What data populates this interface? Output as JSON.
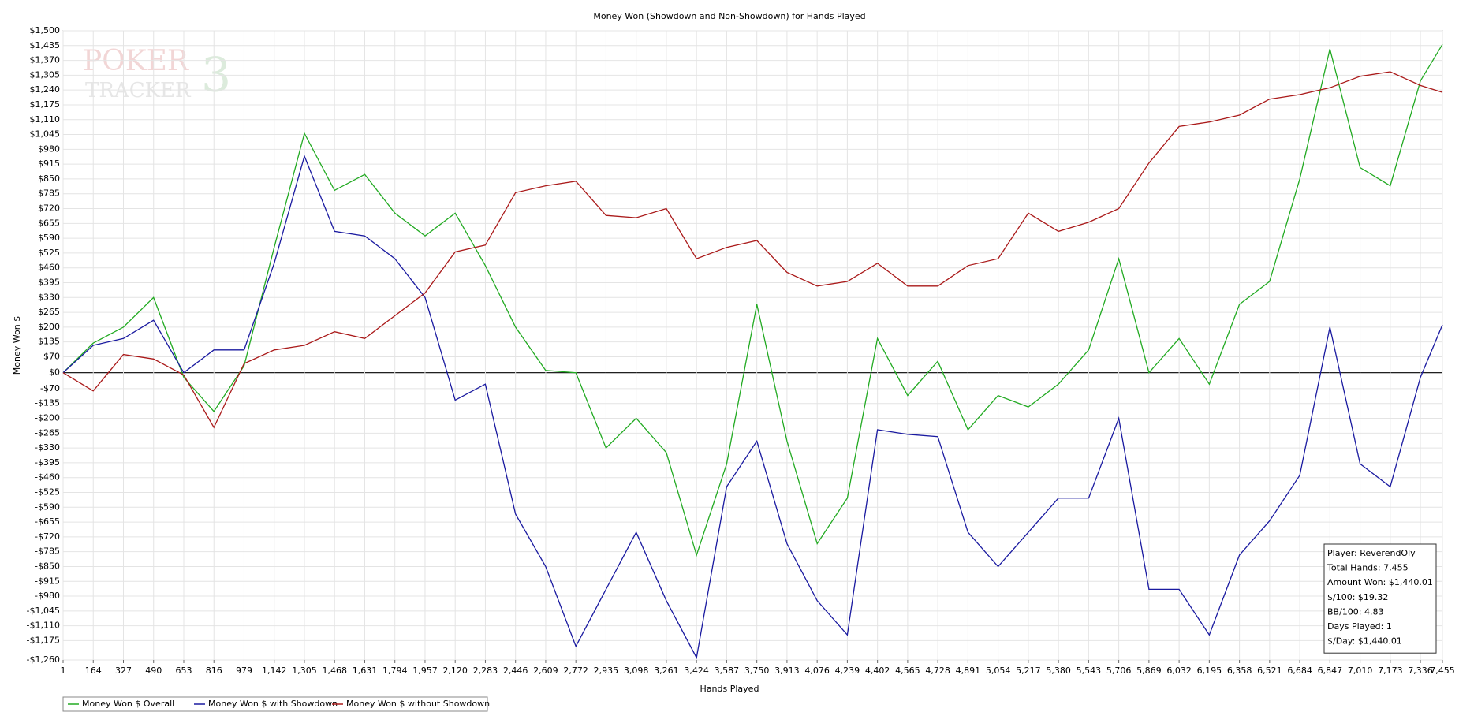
{
  "chart_data": {
    "type": "line",
    "title": "Money Won (Showdown and Non-Showdown) for Hands Played",
    "xlabel": "Hands Played",
    "ylabel": "Money Won $",
    "watermark": [
      "POKER",
      "3",
      "TRACKER"
    ],
    "x": [
      1,
      164,
      327,
      490,
      653,
      816,
      979,
      1142,
      1305,
      1468,
      1631,
      1794,
      1957,
      2120,
      2283,
      2446,
      2609,
      2772,
      2935,
      3098,
      3261,
      3424,
      3587,
      3750,
      3913,
      4076,
      4239,
      4402,
      4565,
      4728,
      4891,
      5054,
      5217,
      5380,
      5543,
      5706,
      5869,
      6032,
      6195,
      6358,
      6521,
      6684,
      6847,
      7010,
      7173,
      7336,
      7455
    ],
    "series": [
      {
        "name": "Money Won $ Overall",
        "color": "#22aa22",
        "values": [
          0,
          130,
          200,
          330,
          -20,
          -170,
          30,
          550,
          1050,
          800,
          870,
          700,
          600,
          700,
          470,
          200,
          10,
          0,
          -330,
          -200,
          -350,
          -800,
          -400,
          300,
          -300,
          -750,
          -550,
          150,
          -100,
          50,
          -250,
          -100,
          -150,
          -50,
          100,
          500,
          0,
          150,
          -50,
          300,
          400,
          850,
          1420,
          900,
          820,
          1280,
          1440
        ]
      },
      {
        "name": "Money Won $ with Showdown",
        "color": "#1a1aa0",
        "values": [
          0,
          120,
          150,
          230,
          0,
          100,
          100,
          480,
          950,
          620,
          600,
          500,
          330,
          -120,
          -50,
          -620,
          -850,
          -1200,
          -950,
          -700,
          -1000,
          -1250,
          -500,
          -300,
          -750,
          -1000,
          -1150,
          -250,
          -270,
          -280,
          -700,
          -850,
          -700,
          -550,
          -550,
          -200,
          -950,
          -950,
          -1150,
          -800,
          -650,
          -450,
          200,
          -400,
          -500,
          -20,
          210
        ]
      },
      {
        "name": "Money Won $ without Showdown",
        "color": "#aa1a1a",
        "values": [
          0,
          -80,
          80,
          60,
          -10,
          -240,
          40,
          100,
          120,
          180,
          150,
          250,
          350,
          530,
          560,
          790,
          820,
          840,
          690,
          680,
          720,
          500,
          550,
          580,
          440,
          380,
          400,
          480,
          380,
          380,
          470,
          500,
          700,
          620,
          660,
          720,
          920,
          1080,
          1100,
          1130,
          1200,
          1220,
          1250,
          1300,
          1320,
          1260,
          1230
        ]
      }
    ],
    "xlim": [
      1,
      7455
    ],
    "xticks": [
      1,
      164,
      327,
      490,
      653,
      816,
      979,
      {
        "value": 1142,
        "label": "1,142"
      },
      {
        "value": 1305,
        "label": "1,305"
      },
      {
        "value": 1468,
        "label": "1,468"
      },
      {
        "value": 1631,
        "label": "1,631"
      },
      {
        "value": 1794,
        "label": "1,794"
      },
      {
        "value": 1957,
        "label": "1,957"
      },
      {
        "value": 2120,
        "label": "2,120"
      },
      {
        "value": 2283,
        "label": "2,283"
      },
      {
        "value": 2446,
        "label": "2,446"
      },
      {
        "value": 2609,
        "label": "2,609"
      },
      {
        "value": 2772,
        "label": "2,772"
      },
      {
        "value": 2935,
        "label": "2,935"
      },
      {
        "value": 3098,
        "label": "3,098"
      },
      {
        "value": 3261,
        "label": "3,261"
      },
      {
        "value": 3424,
        "label": "3,424"
      },
      {
        "value": 3587,
        "label": "3,587"
      },
      {
        "value": 3750,
        "label": "3,750"
      },
      {
        "value": 3913,
        "label": "3,913"
      },
      {
        "value": 4076,
        "label": "4,076"
      },
      {
        "value": 4239,
        "label": "4,239"
      },
      {
        "value": 4402,
        "label": "4,402"
      },
      {
        "value": 4565,
        "label": "4,565"
      },
      {
        "value": 4728,
        "label": "4,728"
      },
      {
        "value": 4891,
        "label": "4,891"
      },
      {
        "value": 5054,
        "label": "5,054"
      },
      {
        "value": 5217,
        "label": "5,217"
      },
      {
        "value": 5380,
        "label": "5,380"
      },
      {
        "value": 5543,
        "label": "5,543"
      },
      {
        "value": 5706,
        "label": "5,706"
      },
      {
        "value": 5869,
        "label": "5,869"
      },
      {
        "value": 6032,
        "label": "6,032"
      },
      {
        "value": 6195,
        "label": "6,195"
      },
      {
        "value": 6358,
        "label": "6,358"
      },
      {
        "value": 6521,
        "label": "6,521"
      },
      {
        "value": 6684,
        "label": "6,684"
      },
      {
        "value": 6847,
        "label": "6,847"
      },
      {
        "value": 7010,
        "label": "7,010"
      },
      {
        "value": 7173,
        "label": "7,173"
      },
      {
        "value": 7336,
        "label": "7,336"
      },
      {
        "value": 7455,
        "label": "7,455"
      }
    ],
    "ylim": [
      -1260,
      1500
    ],
    "yticks": [
      {
        "value": 1500,
        "label": "$1,500"
      },
      {
        "value": 1435,
        "label": "$1,435"
      },
      {
        "value": 1370,
        "label": "$1,370"
      },
      {
        "value": 1305,
        "label": "$1,305"
      },
      {
        "value": 1240,
        "label": "$1,240"
      },
      {
        "value": 1175,
        "label": "$1,175"
      },
      {
        "value": 1110,
        "label": "$1,110"
      },
      {
        "value": 1045,
        "label": "$1,045"
      },
      {
        "value": 980,
        "label": "$980"
      },
      {
        "value": 915,
        "label": "$915"
      },
      {
        "value": 850,
        "label": "$850"
      },
      {
        "value": 785,
        "label": "$785"
      },
      {
        "value": 720,
        "label": "$720"
      },
      {
        "value": 655,
        "label": "$655"
      },
      {
        "value": 590,
        "label": "$590"
      },
      {
        "value": 525,
        "label": "$525"
      },
      {
        "value": 460,
        "label": "$460"
      },
      {
        "value": 395,
        "label": "$395"
      },
      {
        "value": 330,
        "label": "$330"
      },
      {
        "value": 265,
        "label": "$265"
      },
      {
        "value": 200,
        "label": "$200"
      },
      {
        "value": 135,
        "label": "$135"
      },
      {
        "value": 70,
        "label": "$70"
      },
      {
        "value": 0,
        "label": "$0"
      },
      {
        "value": -70,
        "label": "-$70"
      },
      {
        "value": -135,
        "label": "-$135"
      },
      {
        "value": -200,
        "label": "-$200"
      },
      {
        "value": -265,
        "label": "-$265"
      },
      {
        "value": -330,
        "label": "-$330"
      },
      {
        "value": -395,
        "label": "-$395"
      },
      {
        "value": -460,
        "label": "-$460"
      },
      {
        "value": -525,
        "label": "-$525"
      },
      {
        "value": -590,
        "label": "-$590"
      },
      {
        "value": -655,
        "label": "-$655"
      },
      {
        "value": -720,
        "label": "-$720"
      },
      {
        "value": -785,
        "label": "-$785"
      },
      {
        "value": -850,
        "label": "-$850"
      },
      {
        "value": -915,
        "label": "-$915"
      },
      {
        "value": -980,
        "label": "-$980"
      },
      {
        "value": -1045,
        "label": "-$1,045"
      },
      {
        "value": -1110,
        "label": "-$1,110"
      },
      {
        "value": -1175,
        "label": "-$1,175"
      },
      {
        "value": -1260,
        "label": "-$1,260"
      }
    ],
    "grid": true,
    "legend": "bottom-left",
    "info_box": [
      "Player: ReverendOly",
      "Total Hands: 7,455",
      "Amount Won: $1,440.01",
      "$/100: $19.32",
      "BB/100: 4.83",
      "Days Played: 1",
      "$/Day: $1,440.01"
    ]
  }
}
